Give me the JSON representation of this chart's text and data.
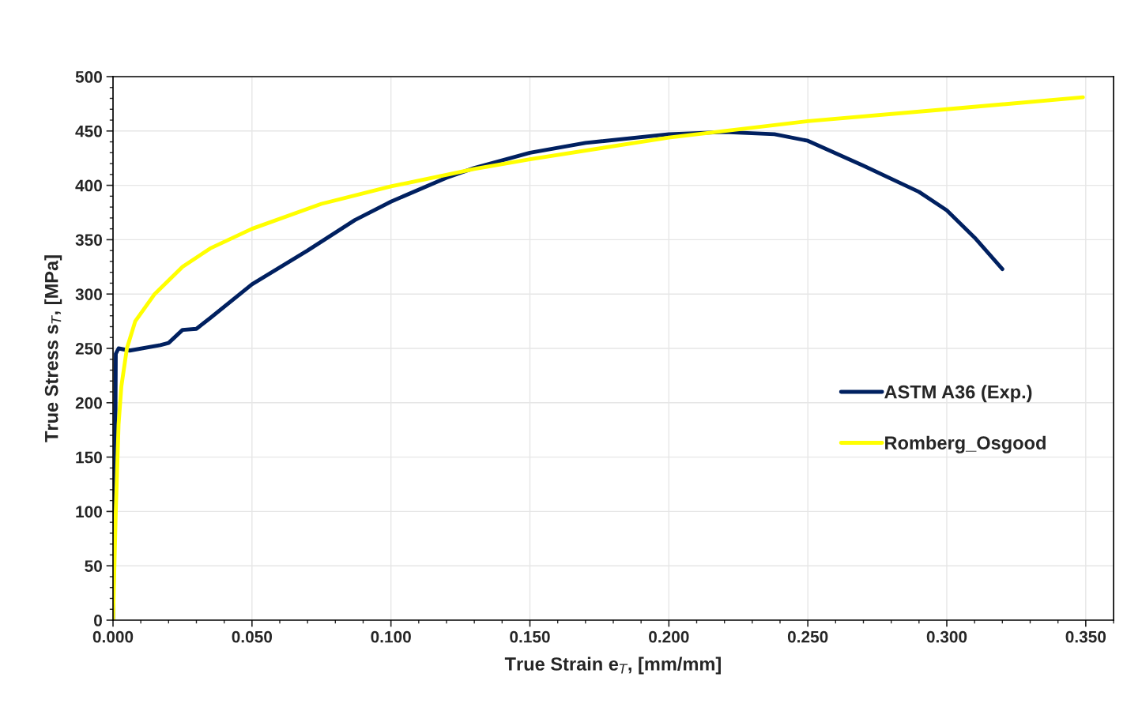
{
  "chart_data": {
    "type": "line",
    "xlabel": "True Strain e$_{T}$, [mm/mm]",
    "ylabel": "True Stress s$_{T}$, [MPa]",
    "xlim": [
      0,
      0.36
    ],
    "ylim": [
      0,
      500
    ],
    "xticks": [
      {
        "value": 0,
        "label": "0.000"
      },
      {
        "value": 0.05,
        "label": "0.050"
      },
      {
        "value": 0.1,
        "label": "0.100"
      },
      {
        "value": 0.15,
        "label": "0.150"
      },
      {
        "value": 0.2,
        "label": "0.200"
      },
      {
        "value": 0.25,
        "label": "0.250"
      },
      {
        "value": 0.3,
        "label": "0.300"
      },
      {
        "value": 0.35,
        "label": "0.350"
      }
    ],
    "yticks": [
      0,
      50,
      100,
      150,
      200,
      250,
      300,
      350,
      400,
      450,
      500
    ],
    "grid": true,
    "legend": "right",
    "marker": "none",
    "line_style": "solid",
    "series": [
      {
        "name": "ASTM A36 (Exp.)",
        "color": "#002060",
        "x": [
          0,
          0.0008,
          0.001,
          0.002,
          0.006,
          0.017,
          0.02,
          0.025,
          0.03,
          0.035,
          0.05,
          0.07,
          0.087,
          0.1,
          0.12,
          0.13,
          0.15,
          0.17,
          0.2,
          0.22,
          0.238,
          0.25,
          0.27,
          0.29,
          0.3,
          0.31,
          0.32
        ],
        "values": [
          0,
          150,
          245,
          250,
          248,
          253,
          255,
          267,
          268,
          278,
          309,
          340,
          368,
          385,
          407,
          416,
          430,
          439,
          447,
          449,
          447,
          441,
          418,
          394,
          377,
          352,
          323
        ]
      },
      {
        "name": "Romberg_Osgood",
        "color": "#ffff00",
        "x": [
          0,
          0.001,
          0.002,
          0.003,
          0.005,
          0.008,
          0.015,
          0.025,
          0.035,
          0.05,
          0.075,
          0.1,
          0.13,
          0.15,
          0.2,
          0.25,
          0.3,
          0.349
        ],
        "values": [
          0,
          100,
          180,
          215,
          250,
          275,
          300,
          325,
          342,
          360,
          383,
          399,
          415,
          424,
          444,
          459,
          470,
          481
        ]
      }
    ]
  }
}
